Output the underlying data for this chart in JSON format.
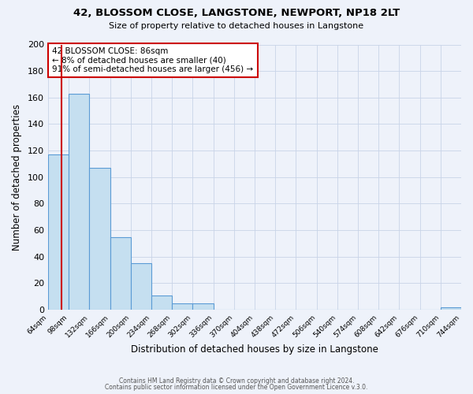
{
  "title": "42, BLOSSOM CLOSE, LANGSTONE, NEWPORT, NP18 2LT",
  "subtitle": "Size of property relative to detached houses in Langstone",
  "xlabel": "Distribution of detached houses by size in Langstone",
  "ylabel": "Number of detached properties",
  "bin_edges": [
    64,
    98,
    132,
    166,
    200,
    234,
    268,
    302,
    336,
    370,
    404,
    438,
    472,
    506,
    540,
    574,
    608,
    642,
    676,
    710,
    744
  ],
  "bar_heights": [
    117,
    163,
    107,
    55,
    35,
    11,
    5,
    5,
    0,
    0,
    0,
    0,
    0,
    0,
    0,
    0,
    0,
    0,
    0,
    2
  ],
  "bar_color": "#c5dff0",
  "bar_edge_color": "#5b9bd5",
  "background_color": "#eef2fa",
  "grid_color": "#c8d4e8",
  "vline_x": 86,
  "vline_color": "#cc0000",
  "ylim": [
    0,
    200
  ],
  "yticks": [
    0,
    20,
    40,
    60,
    80,
    100,
    120,
    140,
    160,
    180,
    200
  ],
  "annotation_title": "42 BLOSSOM CLOSE: 86sqm",
  "annotation_line1": "← 8% of detached houses are smaller (40)",
  "annotation_line2": "91% of semi-detached houses are larger (456) →",
  "annotation_box_color": "#ffffff",
  "annotation_box_edge": "#cc0000",
  "footer1": "Contains HM Land Registry data © Crown copyright and database right 2024.",
  "footer2": "Contains public sector information licensed under the Open Government Licence v.3.0."
}
